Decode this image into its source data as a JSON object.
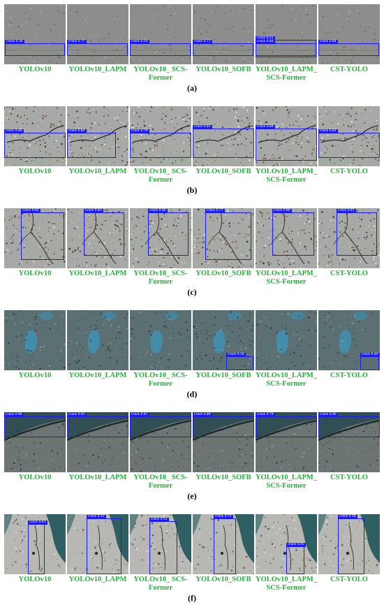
{
  "model_names": [
    "YOLOv10",
    "YOLOv10_LAPM",
    "YOLOv10_ SCS-Former",
    "YOLOv10_SOFB",
    "YOLOv10_LAPM_ SCS-Former",
    "CST-YOLO"
  ],
  "panels": [
    {
      "label": "(a)",
      "theme": "plain",
      "detections": [
        [
          {
            "text": "crack 0.34"
          }
        ],
        [
          {
            "text": "crack 0.77"
          }
        ],
        [
          {
            "text": "crack 0.50"
          }
        ],
        [
          {
            "text": "crack 0.77"
          }
        ],
        [
          {
            "text": "crack 0.51"
          },
          {
            "text": "crack 0.84"
          }
        ],
        [
          {
            "text": "crack 0.84"
          }
        ]
      ]
    },
    {
      "label": "(b)",
      "theme": "speckle",
      "detections": [
        [
          {
            "text": "crack 0.80"
          }
        ],
        [
          {
            "text": "crack 0.84"
          }
        ],
        [
          {
            "text": "crack 0.79"
          }
        ],
        [
          {
            "text": "crack 0.81"
          }
        ],
        [
          {
            "text": "crack 0.84"
          }
        ],
        [
          {
            "text": "crack 0.82"
          }
        ]
      ]
    },
    {
      "label": "(c)",
      "theme": "speckle",
      "detections": [
        [
          {
            "text": "crack 0.82"
          }
        ],
        [
          {
            "text": "crack 0.83"
          }
        ],
        [
          {
            "text": "crack 0.66"
          }
        ],
        [
          {
            "text": "crack 0.77"
          }
        ],
        [
          {
            "text": "crack 0.86"
          }
        ],
        [
          {
            "text": "crack 0.91"
          }
        ]
      ]
    },
    {
      "label": "(d)",
      "theme": "teal",
      "detections": [
        [],
        [],
        [],
        [
          {
            "text": "crack 0.34"
          }
        ],
        [],
        [
          {
            "text": "crack 0.40"
          }
        ]
      ]
    },
    {
      "label": "(e)",
      "theme": "dark",
      "detections": [
        [
          {
            "text": "crack 0.90"
          }
        ],
        [
          {
            "text": "crack 0.91"
          }
        ],
        [
          {
            "text": "crack 0.87"
          }
        ],
        [
          {
            "text": "crack 0.89"
          }
        ],
        [
          {
            "text": "crack 0.79"
          }
        ],
        [
          {
            "text": "crack 0.90"
          }
        ]
      ]
    },
    {
      "label": "(f)",
      "theme": "corner",
      "detections": [
        [
          {
            "text": "crack 0.43"
          }
        ],
        [
          {
            "text": "crack 0.51"
          }
        ],
        [
          {
            "text": "crack 0.52"
          }
        ],
        [
          {
            "text": "crack 0.75"
          }
        ],
        [
          {
            "text": "crack 0.45"
          }
        ],
        [
          {
            "text": "crack 0.58"
          }
        ]
      ]
    }
  ]
}
